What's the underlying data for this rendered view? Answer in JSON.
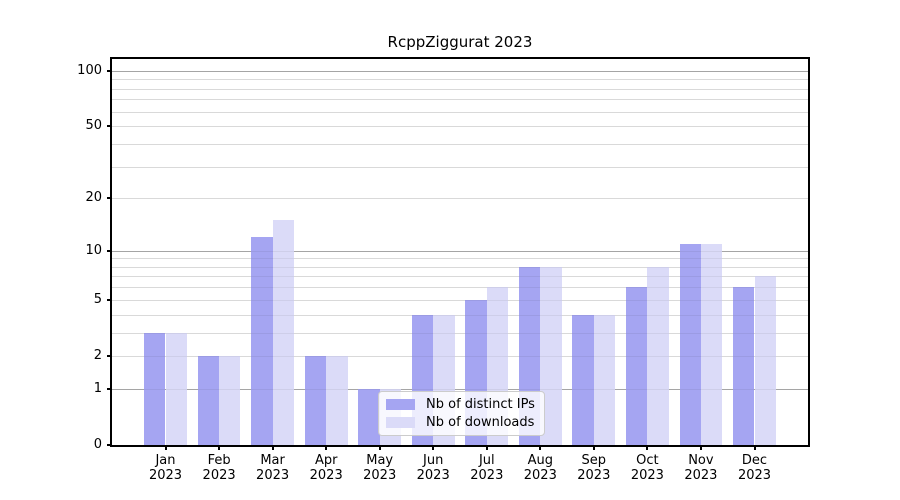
{
  "chart_data": {
    "type": "bar",
    "title": "RcppZiggurat 2023",
    "y_scale": "log1p",
    "grid": true,
    "x_months": [
      "Jan",
      "Feb",
      "Mar",
      "Apr",
      "May",
      "Jun",
      "Jul",
      "Aug",
      "Sep",
      "Oct",
      "Nov",
      "Dec"
    ],
    "x_year": "2023",
    "series": [
      {
        "name": "Nb of distinct IPs",
        "color": "#a5a5f2",
        "values": [
          3,
          2,
          12,
          2,
          1,
          4,
          5,
          8,
          4,
          6,
          11,
          6
        ]
      },
      {
        "name": "Nb of downloads",
        "color": "#dbdbf8",
        "values": [
          3,
          2,
          15,
          2,
          1,
          4,
          6,
          8,
          4,
          8,
          11,
          7
        ]
      }
    ],
    "y_ticks": [
      0,
      1,
      2,
      5,
      10,
      20,
      50,
      100
    ],
    "y_major_gridlines": [
      1,
      10,
      100
    ],
    "y_minor_gridlines": [
      2,
      3,
      4,
      5,
      6,
      7,
      8,
      9,
      20,
      30,
      40,
      50,
      60,
      70,
      80,
      90
    ],
    "ylim": [
      0,
      116
    ],
    "legend_position": "inside-bottom-center",
    "colors": {
      "spine": "#000000",
      "major_gridline": "#b0b0b0",
      "minor_gridline": "#e7e7e7",
      "legend_border": "#cccccc"
    }
  }
}
